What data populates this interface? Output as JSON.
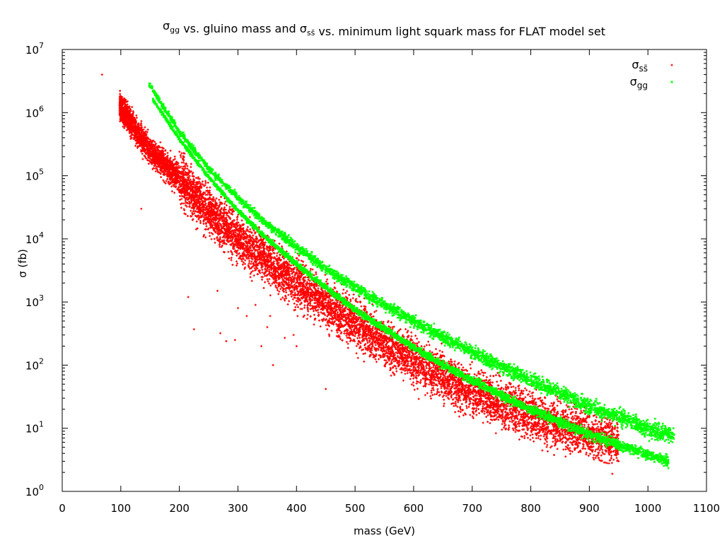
{
  "chart_data": {
    "type": "scatter",
    "title": {
      "parts": [
        {
          "t": "σ"
        },
        {
          "t": "gg",
          "sub": true
        },
        {
          "t": " vs. gluino mass and σ"
        },
        {
          "t": "ss̄",
          "sub": true
        },
        {
          "t": " vs. minimum light squark mass for FLAT model set"
        }
      ]
    },
    "xlabel": "mass (GeV)",
    "ylabel": "σ (fb)",
    "xlim": [
      0,
      1100
    ],
    "ylim": [
      1,
      10000000
    ],
    "yscale": "log",
    "grid": false,
    "legend_position": "top-right",
    "xticks": [
      "0",
      "100",
      "200",
      "300",
      "400",
      "500",
      "600",
      "700",
      "800",
      "900",
      "1000",
      "1100"
    ],
    "yticks": [
      {
        "base": "10",
        "exp": "0"
      },
      {
        "base": "10",
        "exp": "1"
      },
      {
        "base": "10",
        "exp": "2"
      },
      {
        "base": "10",
        "exp": "3"
      },
      {
        "base": "10",
        "exp": "4"
      },
      {
        "base": "10",
        "exp": "5"
      },
      {
        "base": "10",
        "exp": "6"
      },
      {
        "base": "10",
        "exp": "7"
      }
    ],
    "series": [
      {
        "name": "σss̄",
        "name_main": "σ",
        "name_sub": "ss̄",
        "color": "#ff0000",
        "marker": "plus",
        "band_center": [
          [
            68,
            4000000
          ],
          [
            100,
            1200000
          ],
          [
            150,
            250000
          ],
          [
            200,
            90000
          ],
          [
            250,
            28000
          ],
          [
            300,
            10000
          ],
          [
            350,
            4500
          ],
          [
            400,
            2000
          ],
          [
            450,
            900
          ],
          [
            500,
            450
          ],
          [
            550,
            230
          ],
          [
            600,
            120
          ],
          [
            650,
            65
          ],
          [
            700,
            38
          ],
          [
            750,
            24
          ],
          [
            800,
            16
          ],
          [
            850,
            11
          ],
          [
            900,
            8
          ],
          [
            950,
            6
          ]
        ],
        "band_spread_dex": 0.35,
        "outliers": [
          [
            68,
            4000000
          ],
          [
            135,
            30000
          ],
          [
            215,
            1200
          ],
          [
            225,
            370
          ],
          [
            265,
            1500
          ],
          [
            270,
            320
          ],
          [
            280,
            240
          ],
          [
            295,
            250
          ],
          [
            300,
            800
          ],
          [
            315,
            600
          ],
          [
            330,
            900
          ],
          [
            340,
            200
          ],
          [
            350,
            400
          ],
          [
            355,
            600
          ],
          [
            360,
            100
          ],
          [
            380,
            270
          ],
          [
            395,
            300
          ],
          [
            400,
            200
          ],
          [
            450,
            42
          ]
        ]
      },
      {
        "name": "σgg",
        "name_main": "σ",
        "name_sub": "gg",
        "color": "#00ff00",
        "marker": "cross",
        "upper_band": [
          [
            148,
            2900000
          ],
          [
            200,
            500000
          ],
          [
            250,
            130000
          ],
          [
            300,
            45000
          ],
          [
            350,
            17000
          ],
          [
            400,
            7500
          ],
          [
            450,
            3400
          ],
          [
            500,
            1700
          ],
          [
            550,
            900
          ],
          [
            600,
            500
          ],
          [
            650,
            280
          ],
          [
            700,
            160
          ],
          [
            750,
            95
          ],
          [
            800,
            58
          ],
          [
            850,
            36
          ],
          [
            900,
            22
          ],
          [
            950,
            15
          ],
          [
            1000,
            10
          ],
          [
            1045,
            7.5
          ]
        ],
        "lower_band": [
          [
            155,
            1600000
          ],
          [
            200,
            380000
          ],
          [
            250,
            95000
          ],
          [
            300,
            28000
          ],
          [
            350,
            10000
          ],
          [
            400,
            4000
          ],
          [
            450,
            1700
          ],
          [
            500,
            750
          ],
          [
            550,
            380
          ],
          [
            600,
            190
          ],
          [
            650,
            100
          ],
          [
            700,
            58
          ],
          [
            750,
            33
          ],
          [
            800,
            20
          ],
          [
            850,
            12.5
          ],
          [
            900,
            8
          ],
          [
            950,
            5.5
          ],
          [
            1000,
            3.8
          ],
          [
            1035,
            3
          ]
        ]
      }
    ]
  }
}
